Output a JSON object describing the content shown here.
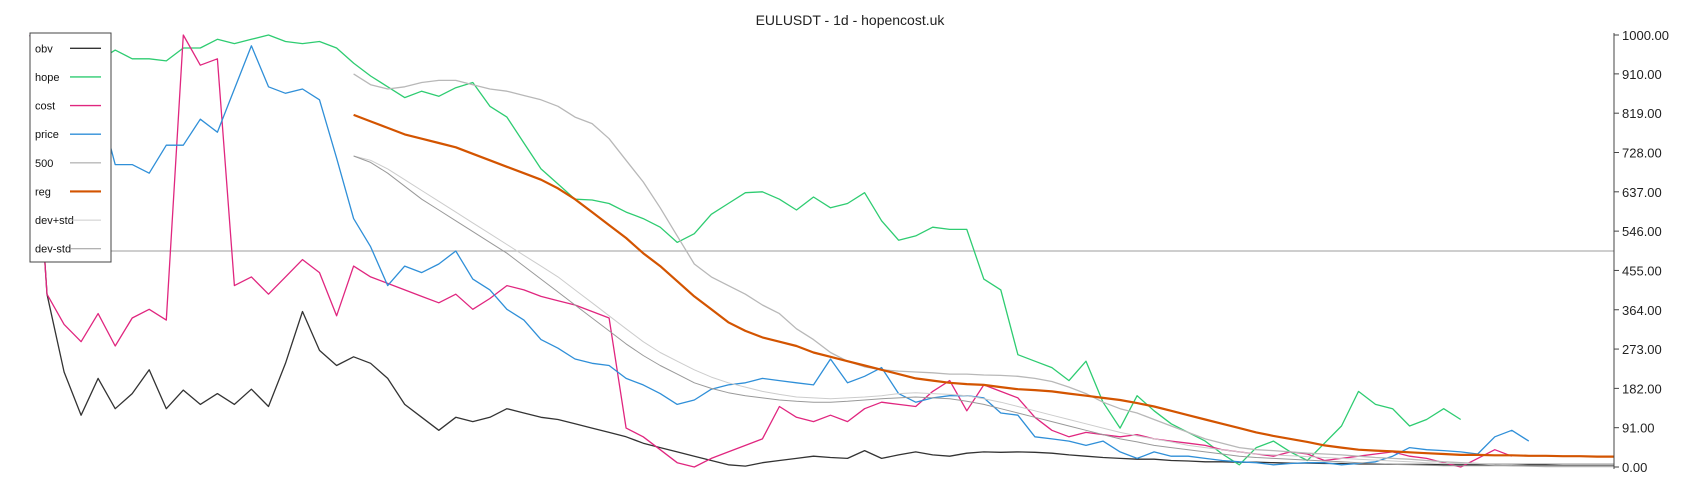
{
  "chart_data": {
    "type": "line",
    "title": "EULUSDT - 1d - hopencost.uk",
    "ylim": [
      0,
      1000
    ],
    "yticks": [
      "0.00",
      "91.00",
      "182.00",
      "273.00",
      "364.00",
      "455.00",
      "546.00",
      "637.00",
      "728.00",
      "819.00",
      "910.00",
      "1000.00"
    ],
    "x_count": 94,
    "hline": 500,
    "legend_position": "top-left",
    "series": [
      {
        "name": "obv",
        "color": "#333333",
        "width": 1.3,
        "start": 0,
        "values": [
          1000,
          400,
          220,
          120,
          205,
          135,
          170,
          225,
          135,
          178,
          145,
          170,
          145,
          180,
          140,
          240,
          360,
          270,
          235,
          255,
          240,
          205,
          145,
          115,
          85,
          115,
          105,
          115,
          135,
          125,
          115,
          110,
          100,
          90,
          80,
          70,
          55,
          45,
          35,
          25,
          15,
          5,
          2,
          10,
          15,
          20,
          25,
          22,
          20,
          38,
          20,
          28,
          35,
          28,
          25,
          32,
          35,
          34,
          35,
          34,
          32,
          28,
          25,
          22,
          20,
          18,
          18,
          15,
          14,
          12,
          12,
          11,
          11,
          10,
          9,
          9,
          8,
          8,
          7,
          7,
          6,
          6,
          6,
          5,
          5,
          5,
          5,
          4,
          5,
          5,
          4,
          4,
          4,
          4
        ]
      },
      {
        "name": "hope",
        "color": "#2ecc71",
        "width": 1.3,
        "start": 0,
        "values": [
          950,
          940,
          935,
          930,
          940,
          965,
          945,
          945,
          940,
          970,
          970,
          990,
          980,
          990,
          1000,
          985,
          980,
          985,
          970,
          935,
          905,
          880,
          855,
          870,
          858,
          878,
          890,
          835,
          810,
          750,
          690,
          655,
          620,
          618,
          610,
          590,
          575,
          555,
          520,
          540,
          585,
          610,
          635,
          637,
          620,
          595,
          625,
          600,
          610,
          635,
          570,
          525,
          535,
          555,
          550,
          550,
          435,
          410,
          260,
          245,
          230,
          200,
          245,
          150,
          90,
          165,
          130,
          100,
          80,
          60,
          30,
          5,
          45,
          60,
          35,
          15,
          55,
          95,
          175,
          145,
          135,
          95,
          110,
          135,
          110
        ]
      },
      {
        "name": "cost",
        "color": "#e0267f",
        "width": 1.3,
        "start": 0,
        "values": [
          1000,
          400,
          330,
          290,
          355,
          280,
          345,
          365,
          340,
          1000,
          930,
          945,
          420,
          440,
          400,
          440,
          480,
          450,
          350,
          465,
          440,
          425,
          410,
          395,
          380,
          400,
          365,
          390,
          420,
          410,
          395,
          385,
          375,
          360,
          345,
          90,
          70,
          40,
          10,
          0,
          20,
          35,
          50,
          65,
          140,
          115,
          105,
          120,
          105,
          135,
          150,
          145,
          140,
          175,
          200,
          130,
          190,
          175,
          160,
          115,
          85,
          70,
          80,
          75,
          70,
          75,
          65,
          60,
          55,
          50,
          40,
          35,
          30,
          25,
          35,
          30,
          15,
          20,
          25,
          30,
          35,
          25,
          20,
          10,
          0,
          20,
          40,
          25
        ]
      },
      {
        "name": "price",
        "color": "#2f8fd8",
        "width": 1.3,
        "start": 0,
        "values": [
          1000,
          720,
          700,
          715,
          850,
          700,
          700,
          680,
          745,
          745,
          805,
          775,
          875,
          975,
          880,
          865,
          875,
          850,
          715,
          575,
          510,
          420,
          465,
          450,
          470,
          500,
          435,
          410,
          365,
          340,
          295,
          275,
          250,
          240,
          235,
          205,
          190,
          170,
          145,
          155,
          180,
          190,
          195,
          205,
          200,
          195,
          190,
          250,
          195,
          210,
          230,
          170,
          150,
          160,
          165,
          165,
          160,
          125,
          120,
          70,
          65,
          60,
          50,
          60,
          35,
          20,
          35,
          25,
          25,
          20,
          15,
          12,
          10,
          5,
          8,
          10,
          10,
          5,
          8,
          12,
          25,
          45,
          40,
          38,
          35,
          30,
          70,
          85,
          60
        ]
      },
      {
        "name": "500",
        "color": "#b8b8b8",
        "width": 1.3,
        "start": 19,
        "values": [
          910,
          885,
          875,
          880,
          890,
          895,
          895,
          885,
          875,
          870,
          860,
          850,
          835,
          810,
          795,
          760,
          710,
          660,
          600,
          535,
          470,
          440,
          420,
          400,
          375,
          355,
          320,
          295,
          265,
          245,
          232,
          225,
          222,
          220,
          218,
          215,
          215,
          213,
          212,
          210,
          205,
          198,
          185,
          170,
          150,
          135,
          125,
          110,
          95,
          80,
          65,
          55,
          45,
          40,
          38,
          35,
          32,
          30,
          28,
          25,
          22,
          20,
          18,
          15,
          12,
          10,
          8,
          5,
          3,
          2,
          1,
          1,
          1,
          1,
          1
        ]
      },
      {
        "name": "reg",
        "color": "#d35400",
        "width": 2.2,
        "start": 19,
        "values": [
          815,
          800,
          785,
          770,
          760,
          750,
          740,
          725,
          710,
          695,
          680,
          665,
          645,
          620,
          590,
          560,
          530,
          495,
          465,
          430,
          395,
          365,
          335,
          315,
          300,
          290,
          280,
          265,
          255,
          245,
          235,
          225,
          215,
          205,
          200,
          195,
          192,
          190,
          185,
          180,
          178,
          175,
          170,
          165,
          160,
          155,
          148,
          140,
          130,
          120,
          110,
          100,
          90,
          80,
          72,
          65,
          58,
          50,
          45,
          40,
          38,
          36,
          34,
          32,
          30,
          28,
          28,
          27,
          27,
          26,
          26,
          25,
          25,
          24,
          24
        ]
      },
      {
        "name": "dev+std",
        "color": "#cccccc",
        "width": 1.0,
        "start": 19,
        "values": [
          720,
          710,
          690,
          665,
          640,
          615,
          590,
          565,
          540,
          515,
          490,
          465,
          440,
          410,
          380,
          350,
          320,
          290,
          265,
          245,
          225,
          208,
          195,
          185,
          175,
          168,
          162,
          160,
          158,
          160,
          162,
          165,
          170,
          172,
          170,
          168,
          165,
          158,
          150,
          140,
          130,
          120,
          110,
          100,
          90,
          80,
          72,
          65,
          58,
          50,
          45,
          40,
          35,
          30,
          28,
          26,
          24,
          22,
          20,
          18,
          16,
          14,
          12,
          10,
          8,
          8,
          8,
          8,
          8,
          8,
          8,
          8,
          8,
          8,
          8
        ]
      },
      {
        "name": "dev-std",
        "color": "#999999",
        "width": 1.0,
        "start": 19,
        "values": [
          720,
          705,
          680,
          650,
          620,
          595,
          570,
          545,
          520,
          495,
          465,
          435,
          405,
          375,
          345,
          315,
          285,
          258,
          235,
          215,
          195,
          182,
          172,
          165,
          160,
          155,
          152,
          150,
          150,
          152,
          155,
          158,
          160,
          162,
          160,
          158,
          152,
          145,
          135,
          125,
          115,
          105,
          95,
          85,
          75,
          65,
          58,
          50,
          45,
          40,
          35,
          30,
          25,
          22,
          20,
          18,
          16,
          14,
          12,
          10,
          8,
          6,
          5,
          4,
          3,
          3,
          3,
          3,
          3,
          3,
          3,
          3,
          3,
          3,
          3
        ]
      }
    ]
  }
}
